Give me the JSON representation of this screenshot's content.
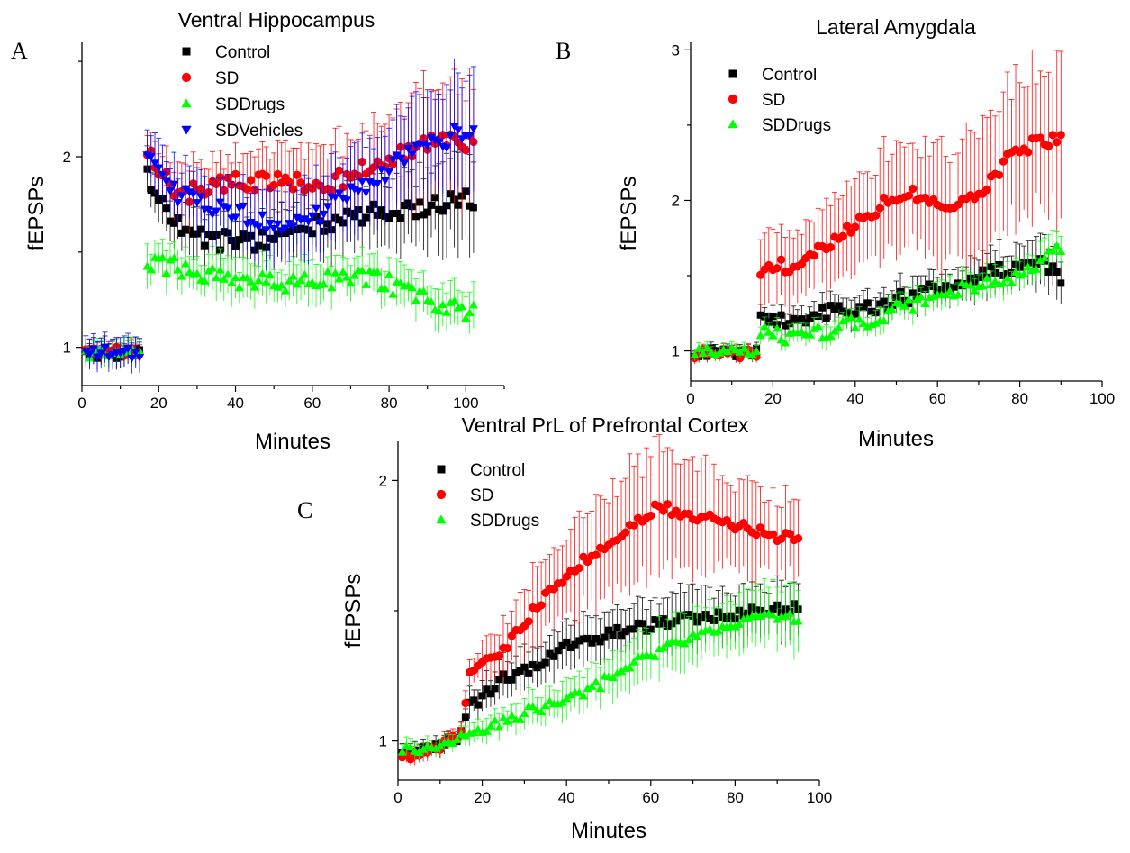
{
  "figure": {
    "panels": [
      {
        "letter": "A",
        "title": "Ventral Hippocampus"
      },
      {
        "letter": "B",
        "title": "Lateral Amygdala"
      },
      {
        "letter": "C",
        "title": "Ventral PrL of Prefrontal Cortex"
      }
    ]
  },
  "colors": {
    "Control": "#000000",
    "SD": "#ff0000",
    "SDDrugs": "#00ff00",
    "SDVehicles": "#0000ff"
  },
  "chart_data": [
    {
      "type": "scatter",
      "title": "Ventral Hippocampus",
      "xlabel": "Minutes",
      "ylabel": "fEPSPs",
      "xlim": [
        0,
        110
      ],
      "ylim": [
        0.8,
        2.6
      ],
      "xticks": [
        0,
        20,
        40,
        60,
        80,
        100
      ],
      "yticks": [
        1,
        2
      ],
      "baseline_end": 15,
      "series": [
        {
          "name": "Control",
          "marker": "square",
          "baseline": 0.97,
          "baseline_err": 0.06,
          "x": [
            17,
            25,
            32,
            40,
            48,
            55,
            62,
            70,
            78,
            86,
            94,
            102
          ],
          "y": [
            1.9,
            1.64,
            1.56,
            1.56,
            1.56,
            1.61,
            1.64,
            1.68,
            1.71,
            1.73,
            1.75,
            1.78
          ],
          "err": [
            0.12,
            0.12,
            0.12,
            0.12,
            0.13,
            0.14,
            0.15,
            0.17,
            0.18,
            0.2,
            0.22,
            0.24
          ]
        },
        {
          "name": "SD",
          "marker": "circle",
          "baseline": 0.98,
          "baseline_err": 0.05,
          "x": [
            17,
            25,
            32,
            40,
            48,
            55,
            62,
            70,
            78,
            86,
            94,
            102
          ],
          "y": [
            2.05,
            1.8,
            1.83,
            1.87,
            1.87,
            1.86,
            1.85,
            1.9,
            1.97,
            2.03,
            2.08,
            2.08
          ],
          "err": [
            0.12,
            0.13,
            0.14,
            0.15,
            0.16,
            0.18,
            0.19,
            0.22,
            0.25,
            0.28,
            0.3,
            0.32
          ]
        },
        {
          "name": "SDDrugs",
          "marker": "triangle-up",
          "baseline": 0.97,
          "baseline_err": 0.06,
          "x": [
            17,
            25,
            32,
            40,
            48,
            55,
            62,
            70,
            78,
            86,
            94,
            102
          ],
          "y": [
            1.44,
            1.42,
            1.38,
            1.36,
            1.35,
            1.34,
            1.35,
            1.38,
            1.35,
            1.28,
            1.22,
            1.18
          ],
          "err": [
            0.1,
            0.1,
            0.1,
            0.1,
            0.1,
            0.1,
            0.1,
            0.1,
            0.1,
            0.1,
            0.1,
            0.1
          ]
        },
        {
          "name": "SDVehicles",
          "marker": "triangle-down",
          "baseline": 0.97,
          "baseline_err": 0.08,
          "x": [
            17,
            25,
            32,
            40,
            48,
            55,
            62,
            70,
            78,
            86,
            94,
            102
          ],
          "y": [
            2.0,
            1.8,
            1.76,
            1.71,
            1.66,
            1.64,
            1.7,
            1.82,
            1.9,
            2.02,
            2.08,
            2.16
          ],
          "err": [
            0.13,
            0.14,
            0.15,
            0.16,
            0.17,
            0.18,
            0.2,
            0.22,
            0.24,
            0.26,
            0.28,
            0.3
          ]
        }
      ],
      "legend": "top-left"
    },
    {
      "type": "scatter",
      "title": "Lateral Amygdala",
      "xlabel": "Minutes",
      "ylabel": "fEPSPs",
      "xlim": [
        0,
        100
      ],
      "ylim": [
        0.8,
        3.05
      ],
      "xticks": [
        0,
        20,
        40,
        60,
        80,
        100
      ],
      "yticks": [
        1,
        2,
        3
      ],
      "baseline_end": 16,
      "series": [
        {
          "name": "Control",
          "marker": "square",
          "baseline": 0.99,
          "baseline_err": 0.04,
          "x": [
            17,
            25,
            32,
            40,
            48,
            55,
            62,
            70,
            78,
            84,
            90
          ],
          "y": [
            1.22,
            1.2,
            1.26,
            1.27,
            1.32,
            1.38,
            1.43,
            1.5,
            1.55,
            1.6,
            1.5
          ],
          "err": [
            0.08,
            0.08,
            0.09,
            0.09,
            0.1,
            0.11,
            0.12,
            0.13,
            0.14,
            0.15,
            0.16
          ]
        },
        {
          "name": "SD",
          "marker": "circle",
          "baseline": 0.98,
          "baseline_err": 0.04,
          "x": [
            17,
            25,
            32,
            40,
            48,
            55,
            62,
            70,
            78,
            84,
            90
          ],
          "y": [
            1.52,
            1.58,
            1.7,
            1.85,
            2.0,
            2.05,
            1.95,
            2.05,
            2.3,
            2.38,
            2.42
          ],
          "err": [
            0.2,
            0.25,
            0.28,
            0.3,
            0.33,
            0.35,
            0.38,
            0.42,
            0.45,
            0.48,
            0.5
          ]
        },
        {
          "name": "SDDrugs",
          "marker": "triangle-up",
          "baseline": 1.0,
          "baseline_err": 0.04,
          "x": [
            17,
            25,
            32,
            40,
            48,
            55,
            62,
            70,
            78,
            84,
            90
          ],
          "y": [
            1.15,
            1.08,
            1.12,
            1.18,
            1.25,
            1.32,
            1.38,
            1.43,
            1.48,
            1.55,
            1.68
          ],
          "err": [
            0.06,
            0.06,
            0.07,
            0.07,
            0.08,
            0.08,
            0.09,
            0.09,
            0.1,
            0.1,
            0.12
          ]
        }
      ],
      "legend": "top-left"
    },
    {
      "type": "scatter",
      "title": "Ventral PrL of Prefrontal Cortex",
      "xlabel": "Minutes",
      "ylabel": "fEPSPs",
      "xlim": [
        0,
        100
      ],
      "ylim": [
        0.85,
        2.15
      ],
      "xticks": [
        0,
        20,
        40,
        60,
        80,
        100
      ],
      "yticks": [
        1,
        2
      ],
      "series": [
        {
          "name": "Control",
          "marker": "square",
          "x": [
            1,
            8,
            15,
            17,
            25,
            32,
            40,
            48,
            55,
            62,
            70,
            78,
            86,
            95
          ],
          "y": [
            0.96,
            0.97,
            1.02,
            1.13,
            1.24,
            1.28,
            1.36,
            1.4,
            1.43,
            1.45,
            1.47,
            1.48,
            1.5,
            1.52
          ],
          "err": [
            0.03,
            0.03,
            0.03,
            0.05,
            0.07,
            0.08,
            0.09,
            0.09,
            0.09,
            0.1,
            0.1,
            0.1,
            0.1,
            0.1
          ]
        },
        {
          "name": "SD",
          "marker": "circle",
          "x": [
            1,
            8,
            15,
            17,
            25,
            32,
            40,
            48,
            55,
            62,
            70,
            78,
            86,
            95
          ],
          "y": [
            0.94,
            0.96,
            1.02,
            1.26,
            1.34,
            1.5,
            1.64,
            1.74,
            1.82,
            1.9,
            1.86,
            1.84,
            1.8,
            1.77
          ],
          "err": [
            0.03,
            0.03,
            0.03,
            0.05,
            0.1,
            0.14,
            0.17,
            0.2,
            0.22,
            0.22,
            0.2,
            0.18,
            0.16,
            0.15
          ]
        },
        {
          "name": "SDDrugs",
          "marker": "triangle-up",
          "x": [
            1,
            8,
            15,
            17,
            25,
            32,
            40,
            48,
            55,
            62,
            70,
            78,
            86,
            95
          ],
          "y": [
            0.96,
            0.98,
            1.01,
            1.04,
            1.07,
            1.12,
            1.16,
            1.22,
            1.3,
            1.35,
            1.4,
            1.45,
            1.48,
            1.47
          ],
          "err": [
            0.03,
            0.03,
            0.03,
            0.04,
            0.05,
            0.06,
            0.07,
            0.08,
            0.09,
            0.1,
            0.1,
            0.11,
            0.11,
            0.12
          ]
        }
      ],
      "legend": "top-left"
    }
  ]
}
